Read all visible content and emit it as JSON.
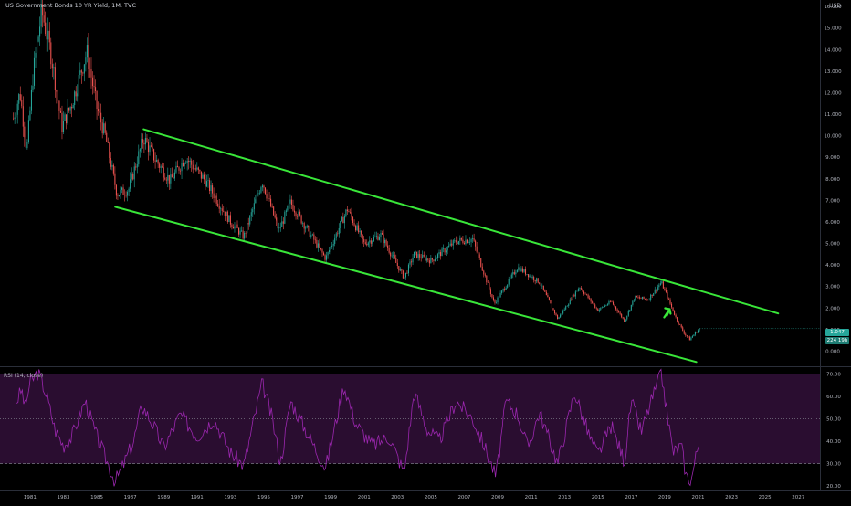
{
  "header": {
    "title": "US Government Bonds 10 YR Yield, 1M, TVC",
    "currency": "USD"
  },
  "badges": {
    "price": "1.047",
    "countdown": "224 19h"
  },
  "colors": {
    "background": "#000000",
    "candle_up": "#26a69a",
    "candle_down": "#ef5350",
    "channel": "#39e639",
    "arrow": "#39e639",
    "rsi_line": "#9c27b0",
    "rsi_band": "#2a0d30"
  },
  "chart_data": [
    {
      "type": "candlestick",
      "title": "US Government Bonds 10 YR Yield, 1M, TVC",
      "ylabel": "USD",
      "ylim": [
        -0.7,
        16.3
      ],
      "xlim": [
        1979.2,
        2028.3
      ],
      "y_ticks": [
        "0.000",
        "1.000",
        "2.000",
        "3.000",
        "4.000",
        "5.000",
        "6.000",
        "7.000",
        "8.000",
        "9.000",
        "10.000",
        "11.000",
        "12.000",
        "13.000",
        "14.000",
        "15.000",
        "16.000"
      ],
      "x_ticks": [
        "1981",
        "1983",
        "1985",
        "1987",
        "1989",
        "1991",
        "1993",
        "1995",
        "1997",
        "1999",
        "2001",
        "2003",
        "2005",
        "2007",
        "2009",
        "2011",
        "2013",
        "2015",
        "2017",
        "2019",
        "2021",
        "2023",
        "2025",
        "2027"
      ],
      "trend": [
        {
          "x": 1980.0,
          "y": 10.8
        },
        {
          "x": 1980.4,
          "y": 12.0
        },
        {
          "x": 1980.8,
          "y": 9.3
        },
        {
          "x": 1981.2,
          "y": 13.0
        },
        {
          "x": 1981.7,
          "y": 15.8
        },
        {
          "x": 1982.3,
          "y": 13.6
        },
        {
          "x": 1982.9,
          "y": 10.4
        },
        {
          "x": 1983.5,
          "y": 11.5
        },
        {
          "x": 1984.4,
          "y": 13.9
        },
        {
          "x": 1985.0,
          "y": 11.3
        },
        {
          "x": 1985.5,
          "y": 10.0
        },
        {
          "x": 1986.2,
          "y": 7.3
        },
        {
          "x": 1986.9,
          "y": 7.5
        },
        {
          "x": 1987.8,
          "y": 9.9
        },
        {
          "x": 1988.5,
          "y": 8.9
        },
        {
          "x": 1989.4,
          "y": 7.9
        },
        {
          "x": 1990.3,
          "y": 9.0
        },
        {
          "x": 1991.5,
          "y": 7.9
        },
        {
          "x": 1993.0,
          "y": 6.0
        },
        {
          "x": 1993.8,
          "y": 5.3
        },
        {
          "x": 1994.9,
          "y": 7.9
        },
        {
          "x": 1995.9,
          "y": 5.6
        },
        {
          "x": 1996.6,
          "y": 6.9
        },
        {
          "x": 1998.7,
          "y": 4.3
        },
        {
          "x": 2000.0,
          "y": 6.6
        },
        {
          "x": 2001.0,
          "y": 5.0
        },
        {
          "x": 2002.0,
          "y": 5.4
        },
        {
          "x": 2003.4,
          "y": 3.4
        },
        {
          "x": 2004.0,
          "y": 4.5
        },
        {
          "x": 2005.0,
          "y": 4.2
        },
        {
          "x": 2006.5,
          "y": 5.1
        },
        {
          "x": 2007.5,
          "y": 5.2
        },
        {
          "x": 2008.8,
          "y": 2.2
        },
        {
          "x": 2010.2,
          "y": 3.9
        },
        {
          "x": 2011.5,
          "y": 3.2
        },
        {
          "x": 2012.6,
          "y": 1.5
        },
        {
          "x": 2013.9,
          "y": 3.0
        },
        {
          "x": 2015.0,
          "y": 1.9
        },
        {
          "x": 2015.8,
          "y": 2.3
        },
        {
          "x": 2016.6,
          "y": 1.4
        },
        {
          "x": 2017.2,
          "y": 2.5
        },
        {
          "x": 2018.0,
          "y": 2.4
        },
        {
          "x": 2018.8,
          "y": 3.2
        },
        {
          "x": 2019.7,
          "y": 1.5
        },
        {
          "x": 2020.2,
          "y": 0.8
        },
        {
          "x": 2020.5,
          "y": 0.55
        },
        {
          "x": 2020.9,
          "y": 0.9
        },
        {
          "x": 2021.1,
          "y": 1.05
        }
      ],
      "annotations": [
        {
          "type": "trendline",
          "name": "upper channel",
          "from": {
            "x": 1987.8,
            "y": 10.3
          },
          "to": {
            "x": 2025.8,
            "y": 1.75
          }
        },
        {
          "type": "trendline",
          "name": "lower channel",
          "from": {
            "x": 1986.1,
            "y": 6.7
          },
          "to": {
            "x": 2020.9,
            "y": -0.5
          }
        },
        {
          "type": "arrow",
          "direction": "up",
          "at": {
            "x": 2019.3,
            "y": 1.95
          }
        }
      ],
      "last_price": 1.047
    },
    {
      "type": "line",
      "title": "RSI (14, close)",
      "ylim": [
        18,
        73
      ],
      "y_ticks": [
        "70.00",
        "60.00",
        "50.00",
        "40.00",
        "30.00",
        "20.00"
      ],
      "bands": [
        30,
        70
      ],
      "series": [
        {
          "values": [
            {
              "x": 1980.2,
              "y": 58
            },
            {
              "x": 1980.5,
              "y": 63
            },
            {
              "x": 1980.7,
              "y": 55
            },
            {
              "x": 1981.0,
              "y": 66
            },
            {
              "x": 1981.5,
              "y": 71
            },
            {
              "x": 1982.0,
              "y": 60
            },
            {
              "x": 1982.5,
              "y": 45
            },
            {
              "x": 1983.0,
              "y": 38
            },
            {
              "x": 1983.5,
              "y": 42
            },
            {
              "x": 1984.3,
              "y": 58
            },
            {
              "x": 1984.9,
              "y": 44
            },
            {
              "x": 1985.5,
              "y": 33
            },
            {
              "x": 1986.1,
              "y": 22
            },
            {
              "x": 1986.5,
              "y": 28
            },
            {
              "x": 1987.2,
              "y": 40
            },
            {
              "x": 1987.7,
              "y": 56
            },
            {
              "x": 1988.4,
              "y": 47
            },
            {
              "x": 1989.0,
              "y": 37
            },
            {
              "x": 1990.0,
              "y": 52
            },
            {
              "x": 1991.0,
              "y": 42
            },
            {
              "x": 1992.0,
              "y": 50
            },
            {
              "x": 1993.0,
              "y": 35
            },
            {
              "x": 1993.8,
              "y": 29
            },
            {
              "x": 1994.9,
              "y": 66
            },
            {
              "x": 1995.5,
              "y": 50
            },
            {
              "x": 1996.0,
              "y": 30
            },
            {
              "x": 1996.6,
              "y": 58
            },
            {
              "x": 1997.5,
              "y": 45
            },
            {
              "x": 1998.7,
              "y": 28
            },
            {
              "x": 1999.8,
              "y": 65
            },
            {
              "x": 2000.5,
              "y": 48
            },
            {
              "x": 2001.5,
              "y": 38
            },
            {
              "x": 2002.5,
              "y": 42
            },
            {
              "x": 2003.4,
              "y": 26
            },
            {
              "x": 2004.0,
              "y": 62
            },
            {
              "x": 2004.8,
              "y": 45
            },
            {
              "x": 2005.5,
              "y": 40
            },
            {
              "x": 2006.5,
              "y": 58
            },
            {
              "x": 2007.5,
              "y": 50
            },
            {
              "x": 2008.2,
              "y": 38
            },
            {
              "x": 2008.9,
              "y": 24
            },
            {
              "x": 2009.5,
              "y": 58
            },
            {
              "x": 2010.2,
              "y": 52
            },
            {
              "x": 2010.8,
              "y": 37
            },
            {
              "x": 2011.5,
              "y": 53
            },
            {
              "x": 2012.6,
              "y": 30
            },
            {
              "x": 2013.6,
              "y": 62
            },
            {
              "x": 2014.5,
              "y": 42
            },
            {
              "x": 2015.0,
              "y": 34
            },
            {
              "x": 2015.8,
              "y": 47
            },
            {
              "x": 2016.6,
              "y": 31
            },
            {
              "x": 2017.0,
              "y": 58
            },
            {
              "x": 2017.6,
              "y": 44
            },
            {
              "x": 2018.2,
              "y": 58
            },
            {
              "x": 2018.8,
              "y": 70
            },
            {
              "x": 2019.5,
              "y": 35
            },
            {
              "x": 2020.0,
              "y": 38
            },
            {
              "x": 2020.3,
              "y": 24
            },
            {
              "x": 2020.6,
              "y": 23
            },
            {
              "x": 2021.0,
              "y": 38
            },
            {
              "x": 2021.1,
              "y": 41
            }
          ]
        }
      ]
    }
  ]
}
